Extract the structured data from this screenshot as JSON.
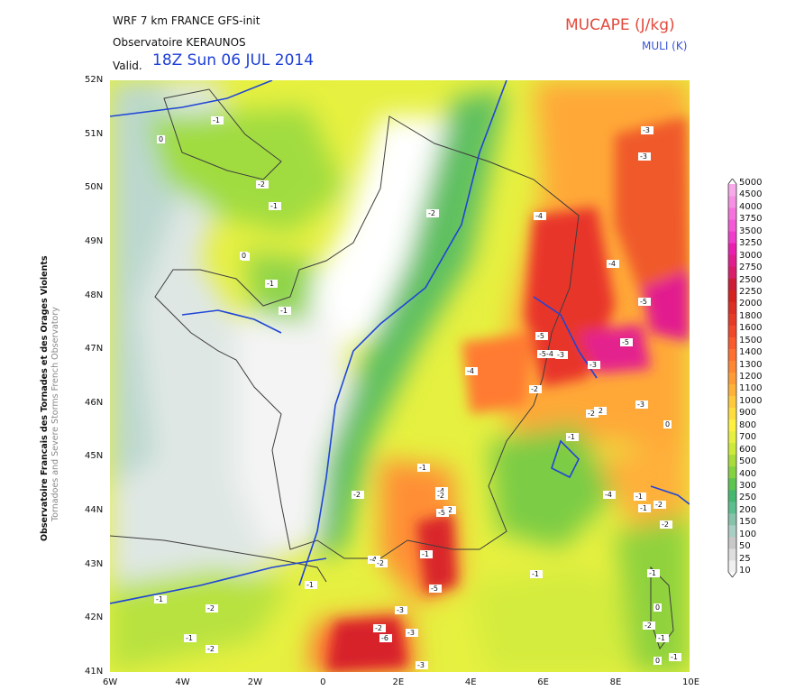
{
  "header": {
    "line1": "WRF 7 km FRANCE  GFS-init",
    "line2": "Observatoire KERAUNOS",
    "valid_prefix": "Valid.",
    "valid_time": "18Z Sun 06 JUL 2014"
  },
  "titles": {
    "primary": "MUCAPE (J/kg)",
    "secondary": "MULI (K)"
  },
  "side_text": {
    "line1": "Observatoire Francais des Tornades et des Orages Violents",
    "line2": "Tornadoes and Severe Storms French Observatory"
  },
  "axes": {
    "lon_ticks": [
      "6W",
      "4W",
      "2W",
      "0",
      "2E",
      "4E",
      "6E",
      "8E",
      "10E"
    ],
    "lat_ticks": [
      "52N",
      "51N",
      "50N",
      "49N",
      "48N",
      "47N",
      "46N",
      "45N",
      "44N",
      "43N",
      "42N",
      "41N"
    ]
  },
  "legend": {
    "levels": [
      "10",
      "25",
      "50",
      "100",
      "150",
      "200",
      "250",
      "300",
      "400",
      "500",
      "600",
      "700",
      "800",
      "900",
      "1000",
      "1100",
      "1200",
      "1300",
      "1400",
      "1500",
      "1600",
      "1800",
      "2000",
      "2250",
      "2500",
      "2750",
      "3000",
      "3250",
      "3500",
      "3750",
      "4000",
      "4500",
      "5000"
    ],
    "colors": [
      "#f0f0f0",
      "#dedede",
      "#c8c8c8",
      "#a9cfc4",
      "#86c3a8",
      "#5cbd8e",
      "#45b86f",
      "#5bc550",
      "#84d240",
      "#a8dc3a",
      "#ccea3a",
      "#e6f040",
      "#fff23f",
      "#ffdd3c",
      "#ffc93a",
      "#ffb238",
      "#ff9c36",
      "#ff8734",
      "#ff7030",
      "#fa5a2c",
      "#f04828",
      "#e63a24",
      "#dc2e22",
      "#d5221e",
      "#cd1c36",
      "#d91d6a",
      "#e21d8e",
      "#ea1fb0",
      "#f03ccc",
      "#f458d6",
      "#f672dc",
      "#f78fe2",
      "#f7a9e8"
    ]
  },
  "muli_labels": [
    "-1",
    "-2",
    "-1",
    "0",
    "0",
    "-1",
    "0",
    "-1",
    "-2",
    "-4",
    "-3",
    "-3",
    "-4",
    "-5",
    "-5",
    "-5-4",
    "-3",
    "-5",
    "-3",
    "-4",
    "-2",
    "-1",
    "-2",
    "-2",
    "-3",
    "-4",
    "-1",
    "0",
    "-2",
    "-1",
    "-1",
    "-2",
    "-4",
    "-2",
    "-1",
    "-5",
    "-4",
    "-3",
    "-2",
    "-1",
    "-1",
    "-2",
    "-1",
    "-2",
    "-2",
    "-3",
    "-2",
    "-5",
    "-6",
    "-3",
    "-1",
    "-2",
    "-1",
    "-2",
    "0",
    "-1",
    "0",
    "-1"
  ],
  "colors": {
    "contour_blue": "#2045d6",
    "border_gray": "#3d3d3d",
    "title_red": "#e34a3c"
  }
}
